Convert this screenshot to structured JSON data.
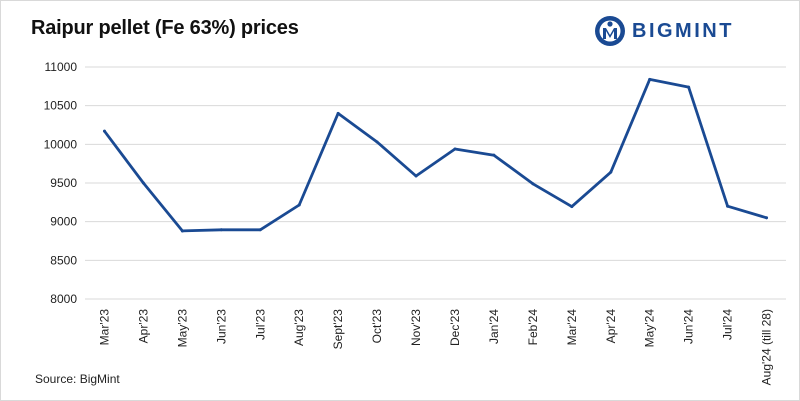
{
  "title": "Raipur pellet (Fe 63%) prices",
  "source": "Source: BigMint",
  "logo": {
    "text": "BIGMINT",
    "icon": "bigmint-logo-icon",
    "color": "#1a4a93"
  },
  "chart_data": {
    "type": "line",
    "title": "Raipur pellet (Fe 63%) prices",
    "xlabel": "",
    "ylabel": "",
    "ylim": [
      8000,
      11000
    ],
    "yticks": [
      8000,
      8500,
      9000,
      9500,
      10000,
      10500,
      11000
    ],
    "grid": true,
    "categories": [
      "Mar'23",
      "Apr'23",
      "May'23",
      "Jun'23",
      "Jul'23",
      "Aug'23",
      "Sept'23",
      "Oct'23",
      "Nov'23",
      "Dec'23",
      "Jan'24",
      "Feb'24",
      "Mar'24",
      "Apr'24",
      "May'24",
      "Jun'24",
      "Jul'24",
      "Aug'24 (till 28)"
    ],
    "series": [
      {
        "color": "#1a4a93",
        "values": [
          10170,
          9500,
          8880,
          8895,
          8895,
          9215,
          10400,
          10030,
          9590,
          9940,
          9860,
          9490,
          9195,
          9640,
          10840,
          10740,
          9200,
          9050
        ]
      }
    ]
  }
}
